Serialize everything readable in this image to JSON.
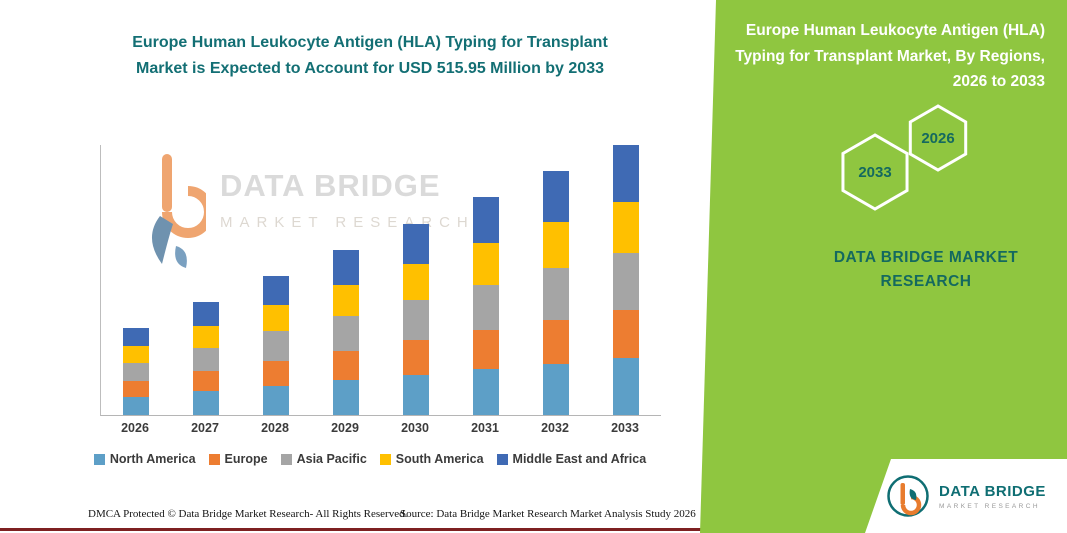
{
  "chart": {
    "title_line1": "Europe Human Leukocyte Antigen (HLA) Typing for Transplant",
    "title_line2": "Market is Expected to Account for USD 515.95 Million by 2033",
    "title_color": "#136f74"
  },
  "chart_data": {
    "type": "bar",
    "stacked": true,
    "title": "Europe Human Leukocyte Antigen (HLA) Typing for Transplant Market is Expected to Account for USD 515.95 Million by 2033",
    "categories": [
      "2026",
      "2027",
      "2028",
      "2029",
      "2030",
      "2031",
      "2032",
      "2033"
    ],
    "series": [
      {
        "name": "North America",
        "color": "#5d9fc7",
        "values": [
          35,
          45,
          56,
          66,
          77,
          87,
          98,
          108
        ]
      },
      {
        "name": "Europe",
        "color": "#ed7d31",
        "values": [
          30,
          39,
          48,
          57,
          66,
          75,
          84,
          93
        ]
      },
      {
        "name": "Asia Pacific",
        "color": "#a5a5a5",
        "values": [
          35,
          45,
          56,
          66,
          77,
          87,
          98,
          108
        ]
      },
      {
        "name": "South America",
        "color": "#ffc000",
        "values": [
          31,
          41,
          50,
          60,
          69,
          79,
          88,
          98
        ]
      },
      {
        "name": "Middle East and Africa",
        "color": "#3f6ab4",
        "values": [
          35,
          46,
          56,
          67,
          77,
          88,
          98,
          109
        ]
      }
    ],
    "units": "USD Million",
    "note": "Segment values estimated from bar heights; no value axis labels shown. 2033 total stated as 515.95.",
    "total_2033": 515.95,
    "legend_position": "bottom",
    "value_axis_visible": false,
    "xlabel": "",
    "ylabel": ""
  },
  "watermark": {
    "line1": "DATA BRIDGE",
    "line2": "MARKET RESEARCH"
  },
  "panel": {
    "bg_color": "#8fc640",
    "text_color": "#14695f",
    "title": "Europe Human Leukocyte Antigen (HLA) Typing for Transplant Market, By Regions, 2026 to 2033",
    "hex_back_year": "2033",
    "hex_front_year": "2026",
    "brand": "DATA BRIDGE MARKET RESEARCH"
  },
  "footer": {
    "rights": "DMCA Protected © Data Bridge Market Research-  All Rights Reserved.",
    "source": "Source: Data Bridge Market Research  Market Analysis Study 2026"
  },
  "logo": {
    "name": "DATA BRIDGE",
    "tagline": "MARKET RESEARCH"
  }
}
